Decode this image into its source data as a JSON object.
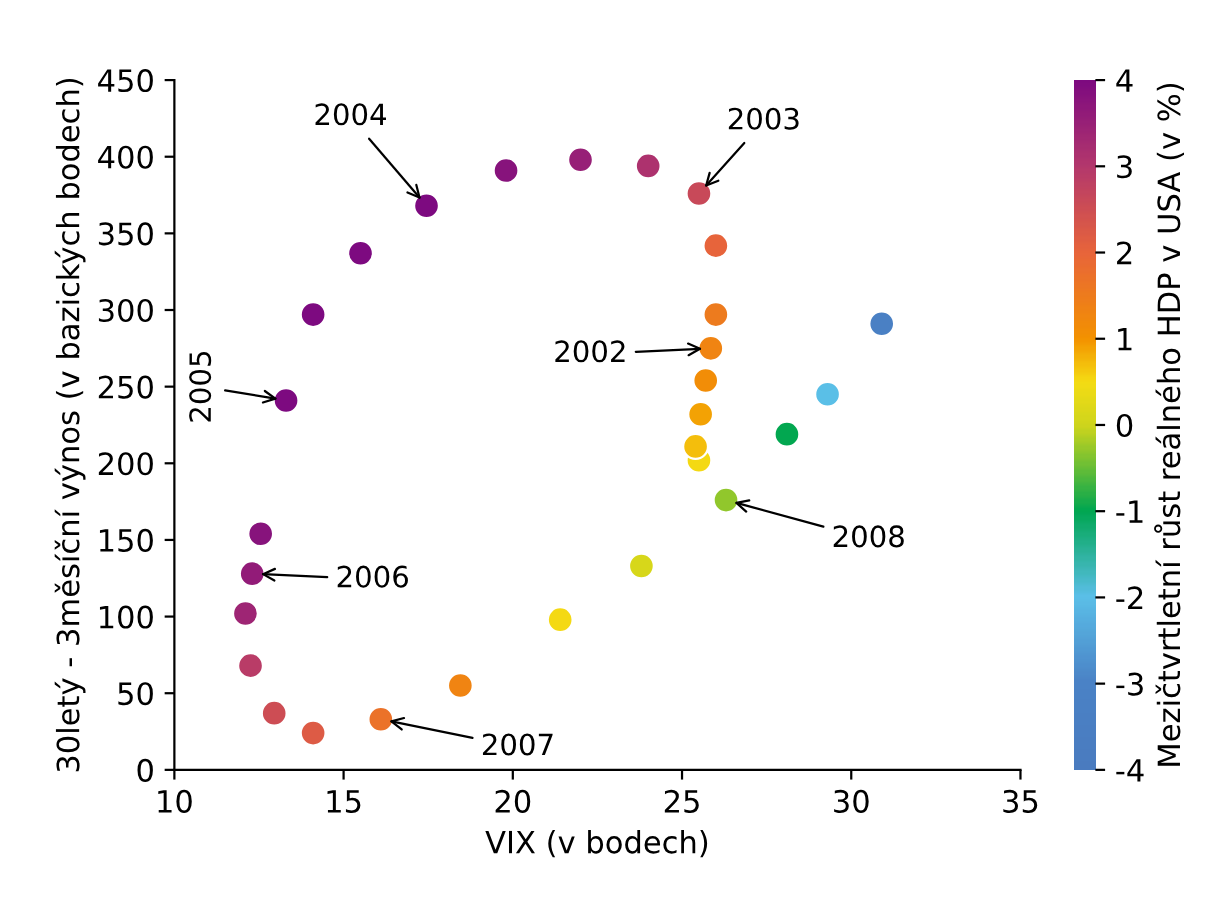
{
  "chart_data": {
    "type": "scatter",
    "xlabel": "VIX (v bodech)",
    "ylabel": "30letý - 3měsíční výnos (v bazických bodech)",
    "clabel": "Mezičtvrtletní růst reálného HDP v USA (v %)",
    "series": [
      {
        "x": [
          25.5,
          25.4,
          25.55,
          25.7,
          25.85,
          26.0,
          26.0,
          25.5,
          24.0,
          22.0,
          19.8,
          17.45,
          15.5,
          14.1,
          13.3,
          12.55,
          12.3,
          12.1,
          12.25,
          12.95,
          14.1,
          16.1,
          18.45,
          21.4,
          23.8,
          26.3,
          28.1,
          29.3,
          30.9
        ],
        "values": [
          202,
          211,
          232,
          254,
          275,
          297,
          342,
          376,
          394,
          398,
          391,
          368,
          337,
          297,
          241,
          154,
          128,
          102,
          68,
          37,
          24,
          33,
          55,
          98,
          133,
          176,
          219,
          245,
          291
        ],
        "cvalues": [
          0.5,
          0.7,
          0.9,
          1.1,
          1.3,
          1.5,
          2.0,
          2.6,
          3.1,
          3.5,
          3.8,
          4.0,
          4.0,
          4.0,
          4.0,
          3.8,
          3.6,
          3.4,
          2.9,
          2.5,
          2.2,
          1.7,
          1.3,
          0.5,
          0.1,
          -0.3,
          -1.0,
          -2.0,
          -3.3
        ]
      }
    ],
    "clim": [
      -4,
      4
    ],
    "cticks": [
      -4,
      -3,
      -2,
      -1,
      0,
      1,
      2,
      3,
      4
    ],
    "xlim": [
      10,
      35
    ],
    "xticks": [
      10,
      15,
      20,
      25,
      30,
      35
    ],
    "ylim": [
      0,
      450
    ],
    "yticks": [
      0,
      50,
      100,
      150,
      200,
      250,
      300,
      350,
      400,
      450
    ],
    "annotations": [
      {
        "text": "2002",
        "x": 25.85,
        "y": 275
      },
      {
        "text": "2003",
        "x": 25.5,
        "y": 376
      },
      {
        "text": "2004",
        "x": 17.45,
        "y": 368
      },
      {
        "text": "2005",
        "x": 13.3,
        "y": 241
      },
      {
        "text": "2006",
        "x": 12.3,
        "y": 128
      },
      {
        "text": "2007",
        "x": 16.1,
        "y": 33
      },
      {
        "text": "2008",
        "x": 26.3,
        "y": 176
      }
    ]
  }
}
